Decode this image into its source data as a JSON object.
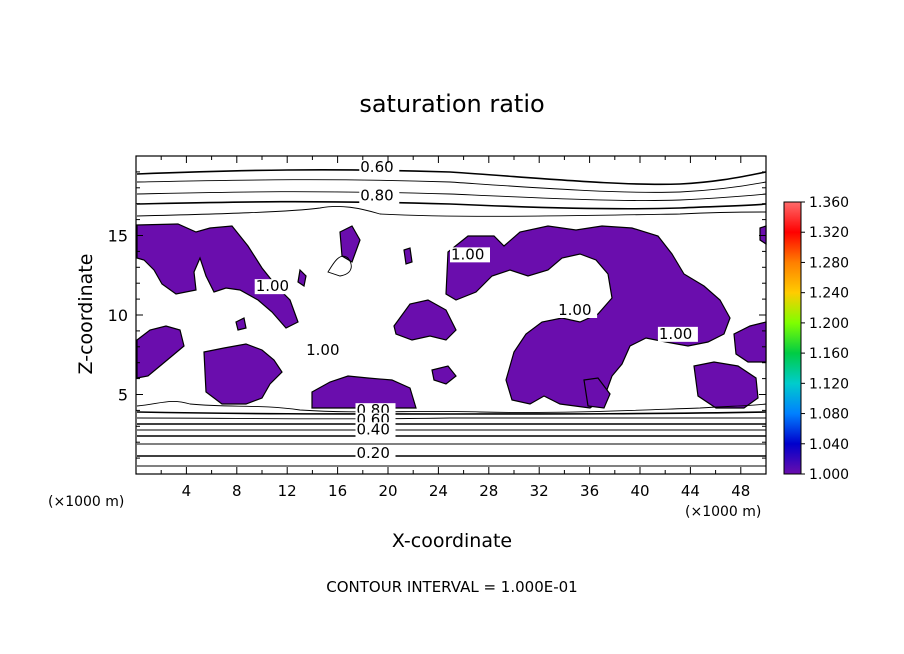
{
  "chart_data": {
    "type": "heatmap",
    "title": "saturation ratio",
    "xlabel": "X-coordinate",
    "ylabel": "Z-coordinate",
    "x_unit_left": "(×1000 m)",
    "x_unit_right": "(×1000 m)",
    "xlim": [
      0,
      50
    ],
    "ylim": [
      0,
      20
    ],
    "x_ticks": [
      4,
      8,
      12,
      16,
      20,
      24,
      28,
      32,
      36,
      40,
      44,
      48
    ],
    "y_ticks": [
      5,
      10,
      15
    ],
    "footer": "CONTOUR INTERVAL = 1.000E-01",
    "contour_labels": [
      {
        "text": "0.60",
        "x": 17.8,
        "z": 19.0
      },
      {
        "text": "0.80",
        "x": 17.8,
        "z": 17.2
      },
      {
        "text": "1.00",
        "x": 9.5,
        "z": 11.5
      },
      {
        "text": "1.00",
        "x": 25.0,
        "z": 13.5
      },
      {
        "text": "1.00",
        "x": 33.5,
        "z": 10.0
      },
      {
        "text": "1.00",
        "x": 41.5,
        "z": 8.5
      },
      {
        "text": "1.00",
        "x": 13.5,
        "z": 7.5
      },
      {
        "text": "0.80",
        "x": 17.5,
        "z": 3.7
      },
      {
        "text": "0.60",
        "x": 17.5,
        "z": 3.1
      },
      {
        "text": "0.40",
        "x": 17.5,
        "z": 2.5
      },
      {
        "text": "0.20",
        "x": 17.5,
        "z": 1.0
      }
    ],
    "colorbar": {
      "labels": [
        "1.360",
        "1.320",
        "1.280",
        "1.240",
        "1.200",
        "1.160",
        "1.120",
        "1.080",
        "1.040",
        "1.000"
      ],
      "colors": [
        "#ff6b6b",
        "#ff0000",
        "#ff7f00",
        "#ffcc00",
        "#7fff00",
        "#00cc44",
        "#00cccc",
        "#0080ff",
        "#0000cc",
        "#6a0dad"
      ]
    },
    "fill_color": "#6a0dad"
  }
}
